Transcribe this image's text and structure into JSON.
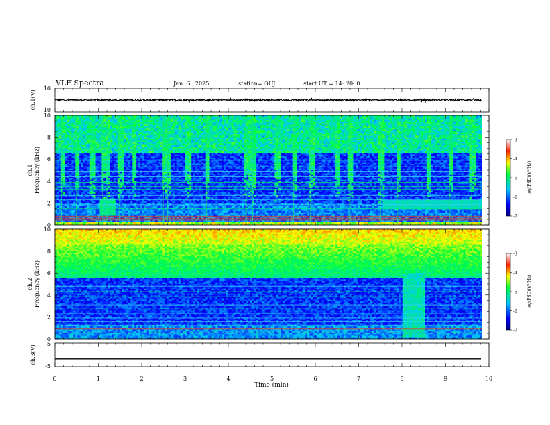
{
  "header": {
    "title": "VLF Spectra",
    "date": "Jan. 6 , 2025",
    "station": "station= OUJ",
    "start": "start UT = 14: 20: 0"
  },
  "chart_data": [
    {
      "type": "line",
      "panel": "ch1-waveform",
      "ylabel": "ch.1(V)",
      "ylim": [
        -10,
        10
      ],
      "yticks": [
        "10",
        "-10"
      ],
      "xlim": [
        0,
        10
      ],
      "series": [
        {
          "baseline": 0,
          "amplitude": 1
        }
      ],
      "color": "#000000"
    },
    {
      "type": "heatmap",
      "panel": "ch1-spectrogram",
      "ylabel": "ch.1\nFrequency (kHz)",
      "ylabel_lines": [
        "ch.1",
        "Frequency (kHz)"
      ],
      "xlim": [
        0,
        9.84
      ],
      "ylim": [
        0,
        10
      ],
      "yticks": [
        "0",
        "2",
        "4",
        "6",
        "8",
        "10"
      ],
      "colorbar": {
        "label": "log(PSD)(V²/Hz)",
        "range": [
          -7,
          -3
        ],
        "ticks": [
          "-3",
          "-4",
          "-5",
          "-6",
          "-7"
        ]
      },
      "lines_khz": [
        0.45,
        0.62,
        0.8,
        1.1,
        1.5,
        1.85,
        2.3,
        2.7,
        3.0,
        3.25,
        3.5,
        3.9,
        4.4,
        4.9,
        5.3,
        5.9,
        6.3
      ],
      "bursts_min": [
        0.15,
        0.5,
        0.85,
        1.1,
        1.2,
        1.5,
        1.8,
        2.5,
        2.6,
        3.05,
        3.5,
        4.4,
        4.55,
        5.1,
        5.5,
        5.9,
        6.5,
        6.8,
        7.5,
        7.9,
        8.6,
        9.1,
        9.6
      ]
    },
    {
      "type": "heatmap",
      "panel": "ch2-spectrogram",
      "ylabel": "ch.2\nFrequency (kHz)",
      "ylabel_lines": [
        "ch.2",
        "Frequency (kHz)"
      ],
      "xlim": [
        0,
        9.84
      ],
      "ylim": [
        0,
        10
      ],
      "yticks": [
        "0",
        "2",
        "4",
        "6",
        "8",
        "10"
      ],
      "colorbar": {
        "label": "log(PSD)(V²/Hz)",
        "range": [
          -7,
          -3
        ],
        "ticks": [
          "-3",
          "-4",
          "-5",
          "-6",
          "-7"
        ]
      },
      "lines_khz": [
        0.55,
        0.9,
        1.2,
        1.6,
        1.9,
        2.35,
        2.8,
        3.1,
        3.45,
        3.85,
        4.3,
        4.8
      ],
      "interference_block": {
        "t_start_min": 8.0,
        "t_end_min": 8.5,
        "f_low_khz": 0.2,
        "f_high_khz": 6.0
      }
    },
    {
      "type": "line",
      "panel": "ch3-waveform",
      "ylabel": "ch.3(V)",
      "ylim": [
        -5,
        5
      ],
      "yticks": [
        "5",
        "-5"
      ],
      "xlim": [
        0,
        10
      ],
      "series": [
        {
          "baseline": -1.7
        }
      ],
      "color": "#000000"
    }
  ],
  "x_axis": {
    "label": "Time (min)",
    "ticks": [
      "0",
      "1",
      "2",
      "3",
      "4",
      "5",
      "6",
      "7",
      "8",
      "9",
      "10"
    ],
    "range": [
      0,
      10
    ]
  }
}
